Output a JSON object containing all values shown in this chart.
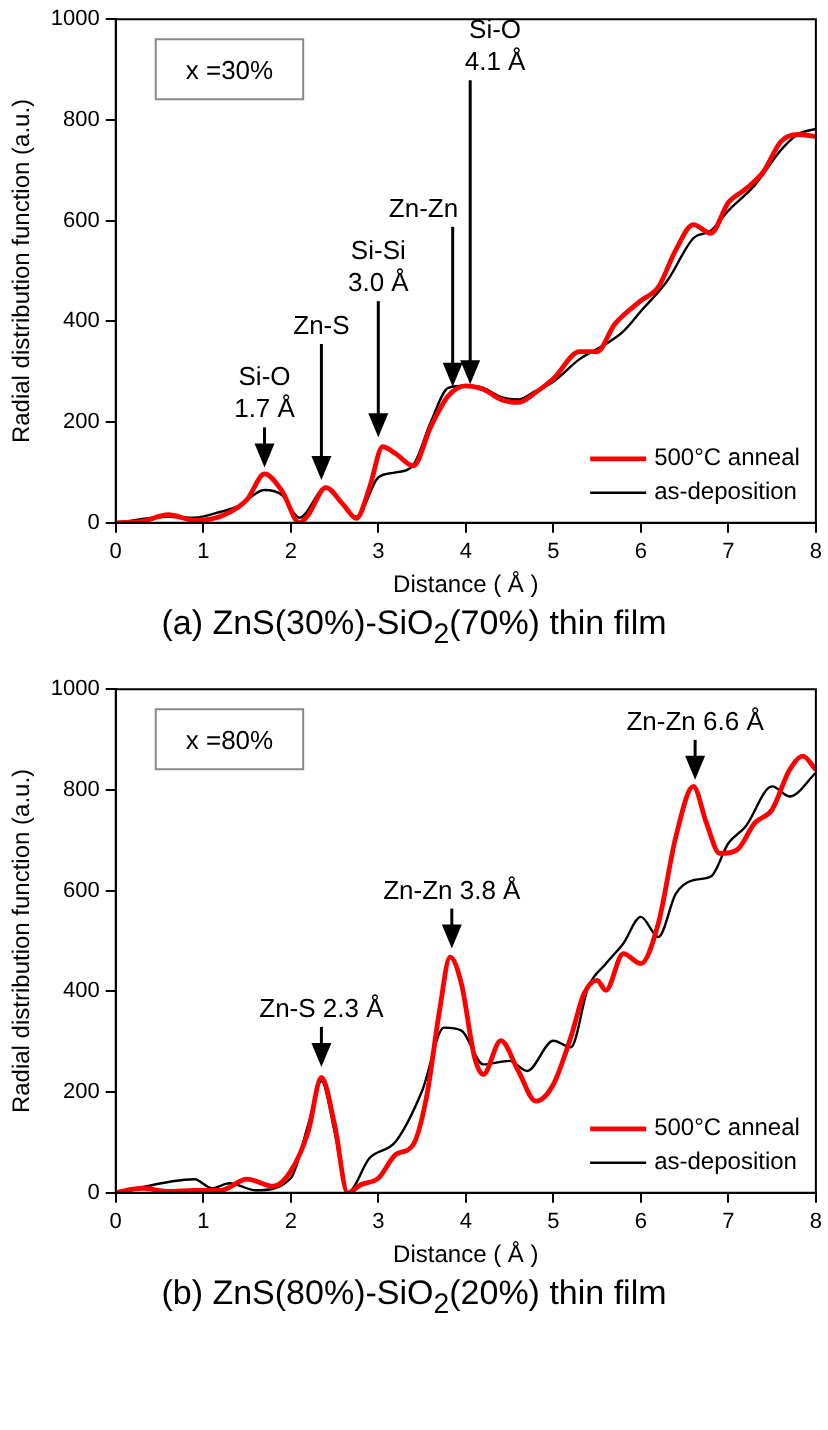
{
  "chart_data": [
    {
      "type": "line",
      "title": "(a) ZnS(30%)-SiO$_{2}$(70%) thin film",
      "xlabel": "Distance ( Å )",
      "ylabel": "Radial distribution function (a.u.)",
      "xlim": [
        0,
        8
      ],
      "xticks": [
        0,
        1,
        2,
        3,
        4,
        5,
        6,
        7,
        8
      ],
      "ylim": [
        0,
        1000
      ],
      "yticks": [
        0,
        200,
        400,
        600,
        800,
        1000
      ],
      "grid": false,
      "legend": "bottom right",
      "marker": "none",
      "line_style": "solid",
      "annotations": [
        "x =30%",
        {
          "text": "Si-O\n1.7 Å",
          "x": 1.7,
          "y": 110
        },
        {
          "text": "Zn-S",
          "x": 2.35,
          "y": 85
        },
        {
          "text": "Si-Si\n3.0 Å",
          "x": 3.0,
          "y": 170
        },
        {
          "text": "Zn-Zn",
          "x": 3.85,
          "y": 270
        },
        {
          "text": "Si-O\n4.1 Å",
          "x": 4.05,
          "y": 275
        }
      ],
      "series": [
        {
          "name": "500°C anneal",
          "color": "#ff0000",
          "x": [
            0,
            0.3,
            0.6,
            0.9,
            1.2,
            1.5,
            1.7,
            1.9,
            2.1,
            2.2,
            2.4,
            2.6,
            2.75,
            2.9,
            3.05,
            3.2,
            3.4,
            3.6,
            3.8,
            4.0,
            4.2,
            4.4,
            4.6,
            4.8,
            5.0,
            5.3,
            5.5,
            5.7,
            6.0,
            6.2,
            6.4,
            6.6,
            6.8,
            7.0,
            7.2,
            7.4,
            7.6,
            7.8,
            8.0
          ],
          "values": [
            0,
            3,
            16,
            5,
            13,
            46,
            97,
            63,
            0,
            16,
            70,
            36,
            9,
            70,
            151,
            137,
            113,
            191,
            252,
            272,
            265,
            245,
            239,
            259,
            286,
            340,
            340,
            394,
            441,
            468,
            542,
            592,
            575,
            636,
            663,
            697,
            757,
            771,
            767
          ]
        },
        {
          "name": "as-deposition",
          "color": "#000000",
          "x": [
            0,
            0.6,
            0.9,
            1.2,
            1.4,
            1.7,
            1.9,
            2.1,
            2.4,
            2.75,
            3.0,
            3.2,
            3.4,
            3.6,
            3.8,
            4.0,
            4.2,
            4.4,
            4.6,
            4.8,
            5.0,
            5.3,
            5.6,
            5.8,
            6.0,
            6.3,
            6.6,
            6.8,
            7.0,
            7.3,
            7.6,
            7.8,
            8.0
          ],
          "values": [
            0,
            12,
            10,
            22,
            33,
            65,
            55,
            10,
            70,
            12,
            90,
            100,
            115,
            200,
            268,
            272,
            268,
            250,
            245,
            262,
            280,
            325,
            355,
            380,
            420,
            480,
            565,
            580,
            620,
            670,
            740,
            772,
            782
          ]
        }
      ]
    },
    {
      "type": "line",
      "title": "(b) ZnS(80%)-SiO$_{2}$(20%) thin film",
      "xlabel": "Distance ( Å )",
      "ylabel": "Radial distribution function (a.u.)",
      "xlim": [
        0,
        8
      ],
      "xticks": [
        0,
        1,
        2,
        3,
        4,
        5,
        6,
        7,
        8
      ],
      "ylim": [
        0,
        1000
      ],
      "yticks": [
        0,
        200,
        400,
        600,
        800,
        1000
      ],
      "grid": false,
      "legend": "bottom right",
      "marker": "none",
      "line_style": "solid",
      "annotations": [
        "x =80%",
        {
          "text": "Zn-S 2.3 Å",
          "x": 2.35,
          "y": 250
        },
        {
          "text": "Zn-Zn 3.8 Å",
          "x": 3.84,
          "y": 485
        },
        {
          "text": "Zn-Zn 6.6 Å",
          "x": 6.62,
          "y": 820
        }
      ],
      "series": [
        {
          "name": "500°C anneal",
          "color": "#ff0000",
          "x": [
            0,
            0.3,
            0.6,
            0.9,
            1.2,
            1.5,
            1.8,
            2.0,
            2.2,
            2.35,
            2.5,
            2.65,
            2.8,
            3.0,
            3.2,
            3.4,
            3.55,
            3.7,
            3.82,
            3.95,
            4.1,
            4.2,
            4.4,
            4.6,
            4.8,
            5.0,
            5.2,
            5.35,
            5.5,
            5.6,
            5.8,
            6.0,
            6.2,
            6.4,
            6.6,
            6.75,
            6.9,
            7.1,
            7.3,
            7.5,
            7.7,
            7.85,
            8.0
          ],
          "values": [
            0,
            9,
            3,
            5,
            5,
            27,
            13,
            43,
            122,
            229,
            136,
            0,
            16,
            29,
            76,
            96,
            189,
            362,
            468,
            415,
            269,
            235,
            302,
            242,
            182,
            215,
            309,
            395,
            422,
            402,
            475,
            455,
            535,
            707,
            807,
            734,
            674,
            681,
            734,
            761,
            840,
            867,
            840
          ]
        },
        {
          "name": "as-deposition",
          "color": "#000000",
          "x": [
            0,
            0.9,
            1.1,
            1.3,
            1.6,
            2.0,
            2.2,
            2.35,
            2.5,
            2.65,
            2.9,
            3.2,
            3.5,
            3.75,
            3.95,
            4.2,
            4.5,
            4.7,
            5.0,
            5.2,
            5.4,
            5.6,
            5.8,
            6.0,
            6.2,
            6.4,
            6.6,
            6.8,
            7.0,
            7.2,
            7.5,
            7.7,
            8.0
          ],
          "values": [
            0,
            27,
            9,
            19,
            5,
            29,
            136,
            222,
            122,
            0,
            69,
            102,
            202,
            328,
            322,
            255,
            262,
            242,
            302,
            289,
            409,
            455,
            495,
            548,
            508,
            594,
            621,
            628,
            694,
            728,
            807,
            787,
            834
          ]
        }
      ]
    }
  ]
}
